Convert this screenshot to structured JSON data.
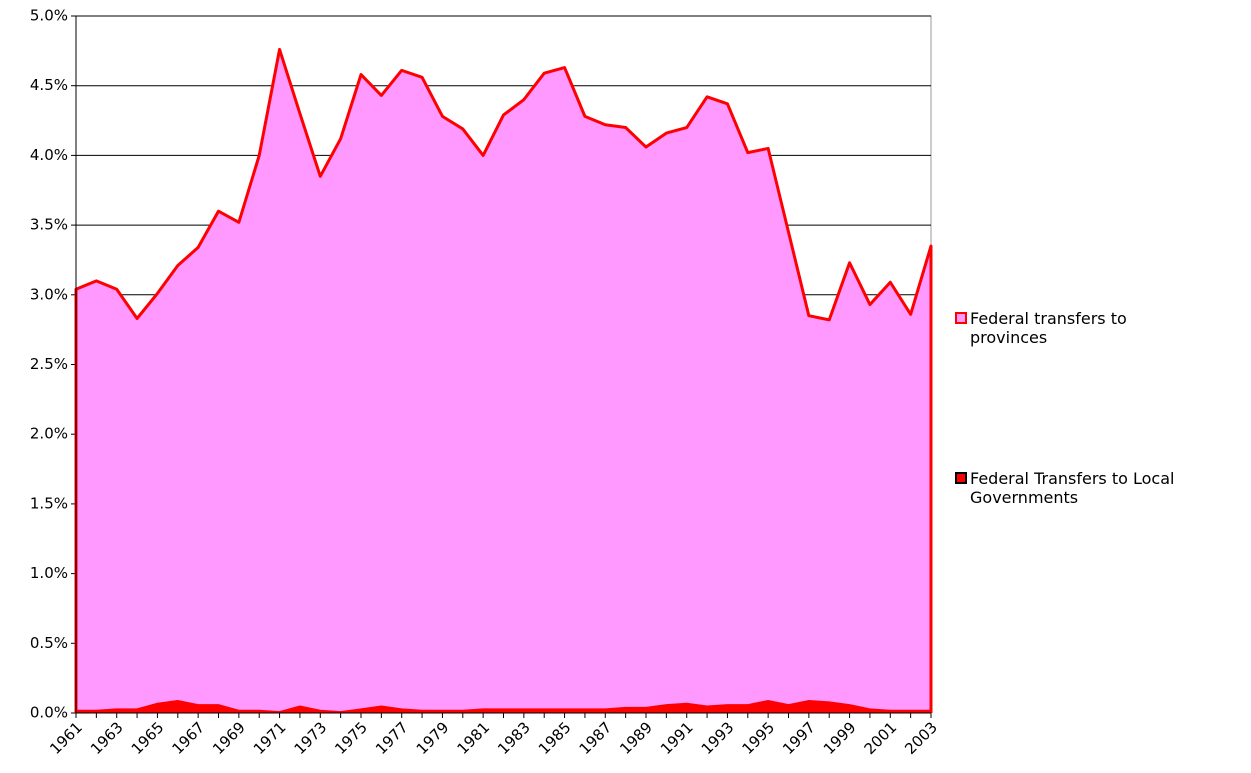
{
  "chart_data": {
    "type": "area",
    "categories": [
      "1961",
      null,
      "1963",
      null,
      "1965",
      null,
      "1967",
      null,
      "1969",
      null,
      "1971",
      null,
      "1973",
      null,
      "1975",
      null,
      "1977",
      null,
      "1979",
      null,
      "1981",
      null,
      "1983",
      null,
      "1985",
      null,
      "1987",
      null,
      "1989",
      null,
      "1991",
      null,
      "1993",
      null,
      "1995",
      null,
      "1997",
      null,
      "1999",
      null,
      "2001",
      null,
      "2003"
    ],
    "series": [
      {
        "name": "Federal transfers to provinces",
        "color": "#ff99ff",
        "edge_color": "#ff0000",
        "values": [
          3.04,
          3.1,
          3.04,
          2.83,
          3.01,
          3.21,
          3.34,
          3.6,
          3.52,
          4.0,
          4.76,
          4.3,
          3.85,
          4.12,
          4.58,
          4.43,
          4.61,
          4.56,
          4.28,
          4.19,
          4.0,
          4.29,
          4.4,
          4.59,
          4.63,
          4.28,
          4.22,
          4.2,
          4.06,
          4.16,
          4.2,
          4.42,
          4.37,
          4.02,
          4.05,
          3.45,
          2.85,
          2.82,
          3.23,
          2.93,
          3.09,
          2.86,
          3.35
        ]
      },
      {
        "name": "Federal Transfers to Local Governments",
        "color": "#ff0000",
        "edge_color": "#ff0000",
        "values": [
          0.02,
          0.02,
          0.03,
          0.03,
          0.07,
          0.09,
          0.06,
          0.06,
          0.02,
          0.02,
          0.01,
          0.05,
          0.02,
          0.01,
          0.03,
          0.05,
          0.03,
          0.02,
          0.02,
          0.02,
          0.03,
          0.03,
          0.03,
          0.03,
          0.03,
          0.03,
          0.03,
          0.04,
          0.04,
          0.06,
          0.07,
          0.05,
          0.06,
          0.06,
          0.09,
          0.06,
          0.09,
          0.08,
          0.06,
          0.03,
          0.02,
          0.02,
          0.02
        ]
      }
    ],
    "ylim": [
      0,
      5
    ],
    "yticks": [
      {
        "value": 0,
        "label": "0.0%"
      },
      {
        "value": 0.5,
        "label": "0.5%"
      },
      {
        "value": 1,
        "label": "1.0%"
      },
      {
        "value": 1.5,
        "label": "1.5%"
      },
      {
        "value": 2,
        "label": "2.0%"
      },
      {
        "value": 2.5,
        "label": "2.5%"
      },
      {
        "value": 3,
        "label": "3.0%"
      },
      {
        "value": 3.5,
        "label": "3.5%"
      },
      {
        "value": 4,
        "label": "4.0%"
      },
      {
        "value": 4.5,
        "label": "4.5%"
      },
      {
        "value": 5,
        "label": "5.0%"
      }
    ],
    "grid": true,
    "legend": "right"
  }
}
